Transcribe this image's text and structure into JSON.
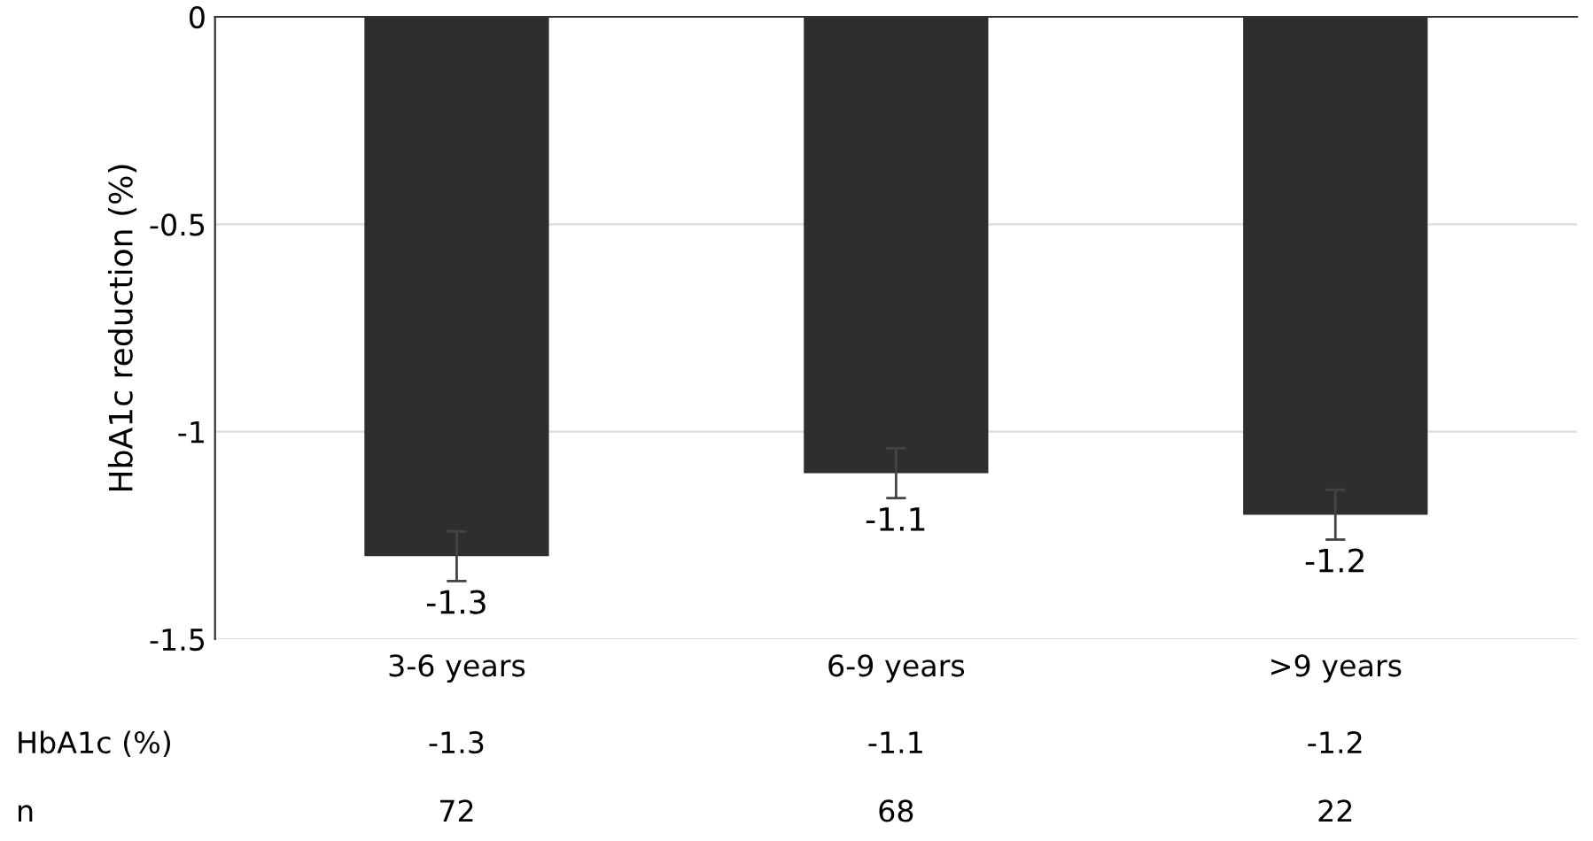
{
  "chart_data": {
    "type": "bar",
    "ylabel": "HbA1c reduction (%)",
    "categories": [
      "3-6 years",
      "6-9 years",
      ">9 years"
    ],
    "values": [
      -1.3,
      -1.1,
      -1.2
    ],
    "errors": [
      0.06,
      0.06,
      0.06
    ],
    "value_labels": [
      "-1.3",
      "-1.1",
      "-1.2"
    ],
    "color": "#2e2e2e",
    "ylim": [
      -1.5,
      0
    ],
    "yticks": [
      {
        "value": -1.5,
        "label": "-1.5"
      },
      {
        "value": -1,
        "label": "-1"
      },
      {
        "value": -0.5,
        "label": "-0.5"
      },
      {
        "value": 0,
        "label": "0"
      }
    ],
    "grid": "y",
    "annotations": [
      "HbA1c (%)",
      "n",
      "-1.3",
      "-1.1",
      "-1.2",
      "72",
      "68",
      "22"
    ]
  }
}
